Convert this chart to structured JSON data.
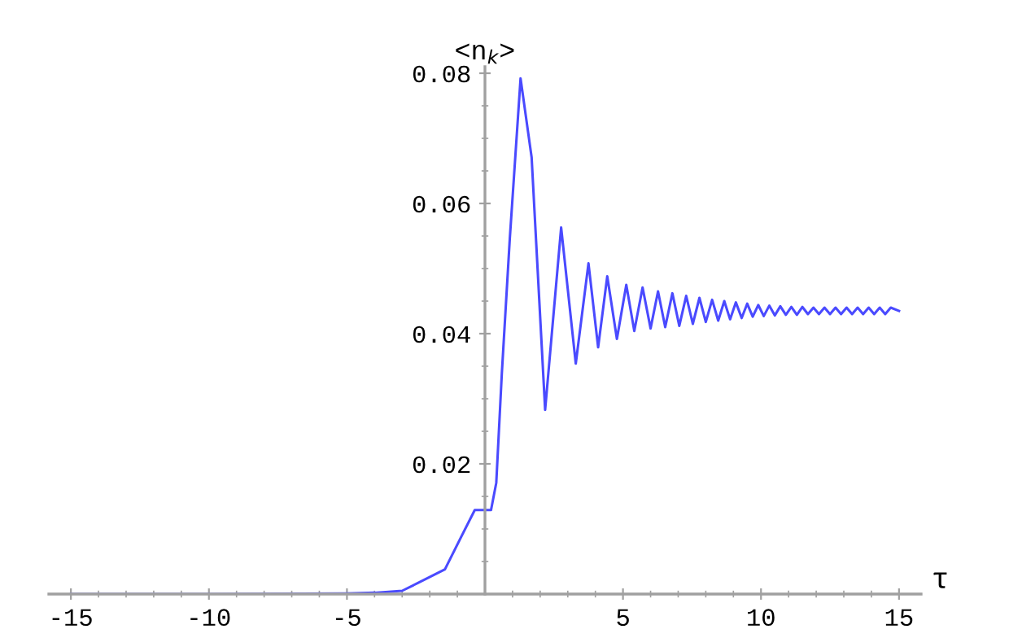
{
  "chart_data": {
    "type": "line",
    "xlabel": "τ",
    "ylabel": "<n$_{k}$>",
    "xlim": [
      -15.8,
      15.8
    ],
    "ylim": [
      0,
      0.081
    ],
    "xticks": [
      -15,
      {
        "value": -14,
        "label": null
      },
      {
        "value": -13,
        "label": null
      },
      {
        "value": -12,
        "label": null
      },
      {
        "value": -11,
        "label": null
      },
      -10,
      {
        "value": -9,
        "label": null
      },
      {
        "value": -8,
        "label": null
      },
      {
        "value": -7,
        "label": null
      },
      {
        "value": -6,
        "label": null
      },
      -5,
      {
        "value": -4,
        "label": null
      },
      {
        "value": -3,
        "label": null
      },
      {
        "value": -2,
        "label": null
      },
      {
        "value": -1,
        "label": null
      },
      {
        "value": 1,
        "label": null
      },
      {
        "value": 2,
        "label": null
      },
      {
        "value": 3,
        "label": null
      },
      {
        "value": 4,
        "label": null
      },
      5,
      {
        "value": 6,
        "label": null
      },
      {
        "value": 7,
        "label": null
      },
      {
        "value": 8,
        "label": null
      },
      {
        "value": 9,
        "label": null
      },
      10,
      {
        "value": 11,
        "label": null
      },
      {
        "value": 12,
        "label": null
      },
      {
        "value": 13,
        "label": null
      },
      {
        "value": 14,
        "label": null
      },
      15
    ],
    "yticks": [
      {
        "value": 0.005,
        "label": null
      },
      {
        "value": 0.01,
        "label": null
      },
      {
        "value": 0.015,
        "label": null
      },
      0.02,
      {
        "value": 0.025,
        "label": null
      },
      {
        "value": 0.03,
        "label": null
      },
      {
        "value": 0.035,
        "label": null
      },
      0.04,
      {
        "value": 0.045,
        "label": null
      },
      {
        "value": 0.05,
        "label": null
      },
      {
        "value": 0.055,
        "label": null
      },
      0.06,
      {
        "value": 0.065,
        "label": null
      },
      {
        "value": 0.07,
        "label": null
      },
      {
        "value": 0.075,
        "label": null
      },
      0.08
    ],
    "grid": false,
    "legend": false,
    "marker": "none",
    "line_style": "solid",
    "series": [
      {
        "color": "#4a4aff",
        "x": [
          -15,
          -10,
          -5,
          -4,
          -3,
          -2.43,
          -1.45,
          -0.86,
          -0.37,
          0.22,
          0.41,
          0.61,
          0.9,
          1.29,
          1.69,
          2.18,
          2.76,
          3.29,
          3.75,
          4.1,
          4.43,
          4.78,
          5.12,
          5.41,
          5.71,
          6.0,
          6.27,
          6.53,
          6.79,
          7.04,
          7.29,
          7.53,
          7.77,
          8.0,
          8.23,
          8.45,
          8.67,
          8.88,
          9.09,
          9.3,
          9.5,
          9.7,
          9.9,
          10.1,
          10.3,
          10.5,
          10.7,
          10.9,
          11.1,
          11.3,
          11.5,
          11.7,
          11.9,
          12.1,
          12.3,
          12.5,
          12.7,
          12.9,
          13.1,
          13.3,
          13.5,
          13.7,
          13.9,
          14.1,
          14.3,
          14.5,
          14.7,
          15.0
        ],
        "values": [
          0,
          0,
          0.0001,
          0.0002,
          0.0005,
          0.0017,
          0.0038,
          0.0088,
          0.0129,
          0.0129,
          0.0171,
          0.0338,
          0.0546,
          0.0792,
          0.0671,
          0.0283,
          0.0563,
          0.0354,
          0.0508,
          0.0379,
          0.0488,
          0.0392,
          0.0475,
          0.0404,
          0.0471,
          0.0408,
          0.0465,
          0.041,
          0.0462,
          0.0412,
          0.0458,
          0.0415,
          0.0455,
          0.0418,
          0.0452,
          0.042,
          0.045,
          0.0422,
          0.0448,
          0.0424,
          0.0446,
          0.0426,
          0.0444,
          0.0427,
          0.0443,
          0.0428,
          0.0442,
          0.0429,
          0.0441,
          0.0429,
          0.0441,
          0.043,
          0.044,
          0.043,
          0.044,
          0.043,
          0.044,
          0.043,
          0.044,
          0.043,
          0.044,
          0.043,
          0.044,
          0.043,
          0.044,
          0.043,
          0.044,
          0.0435
        ]
      }
    ]
  }
}
